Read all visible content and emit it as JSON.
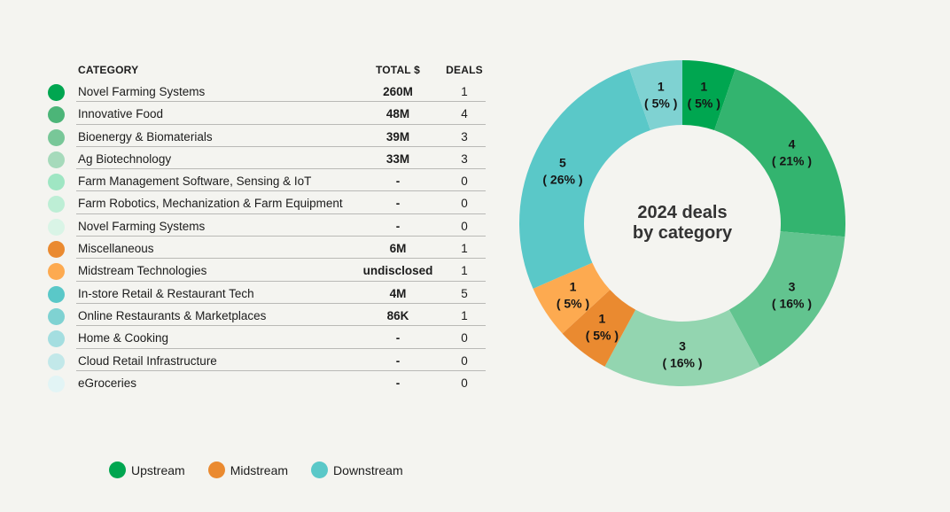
{
  "table": {
    "headers": {
      "category": "CATEGORY",
      "total": "TOTAL $",
      "deals": "DEALS"
    },
    "rows": [
      {
        "category": "Novel Farming Systems",
        "total": "260M",
        "deals": "1",
        "color": "#00a650",
        "group": "Upstream"
      },
      {
        "category": "Innovative Food",
        "total": "48M",
        "deals": "4",
        "color": "#4cb578",
        "group": "Upstream"
      },
      {
        "category": "Bioenergy & Biomaterials",
        "total": "39M",
        "deals": "3",
        "color": "#78c798",
        "group": "Upstream"
      },
      {
        "category": "Ag Biotechnology",
        "total": "33M",
        "deals": "3",
        "color": "#a6dabb",
        "group": "Upstream"
      },
      {
        "category": "Farm Management Software, Sensing & IoT",
        "total": "-",
        "deals": "0",
        "color": "#9fe6c3",
        "group": "Upstream"
      },
      {
        "category": "Farm Robotics, Mechanization & Farm Equipment",
        "total": "-",
        "deals": "0",
        "color": "#bdeed5",
        "group": "Upstream"
      },
      {
        "category": "Novel Farming Systems",
        "total": "-",
        "deals": "0",
        "color": "#d9f4e6",
        "group": "Upstream"
      },
      {
        "category": "Miscellaneous",
        "total": "6M",
        "deals": "1",
        "color": "#ea8a30",
        "group": "Midstream"
      },
      {
        "category": "Midstream Technologies",
        "total": "undisclosed",
        "deals": "1",
        "color": "#fdaa50",
        "group": "Midstream"
      },
      {
        "category": "In-store Retail & Restaurant Tech",
        "total": "4M",
        "deals": "5",
        "color": "#5ac8c8",
        "group": "Downstream"
      },
      {
        "category": "Online Restaurants & Marketplaces",
        "total": "86K",
        "deals": "1",
        "color": "#7fd2d2",
        "group": "Downstream"
      },
      {
        "category": "Home & Cooking",
        "total": "-",
        "deals": "0",
        "color": "#a4dee0",
        "group": "Downstream"
      },
      {
        "category": "Cloud Retail Infrastructure",
        "total": "-",
        "deals": "0",
        "color": "#c2e8e9",
        "group": "Downstream"
      },
      {
        "category": "eGroceries",
        "total": "-",
        "deals": "0",
        "color": "#e2f4f5",
        "group": "Downstream"
      }
    ]
  },
  "legend": [
    {
      "label": "Upstream",
      "color": "#00a650"
    },
    {
      "label": "Midstream",
      "color": "#ea8a30"
    },
    {
      "label": "Downstream",
      "color": "#5ac8c8"
    }
  ],
  "chart_data": {
    "type": "pie",
    "variant": "donut",
    "title": "2024 deals by category",
    "title_lines": [
      "2024 deals",
      "by category"
    ],
    "total": 19,
    "start": "top, clockwise",
    "slices": [
      {
        "category": "Novel Farming Systems",
        "value": 1,
        "percent_label": "5%",
        "color": "#00a650"
      },
      {
        "category": "Innovative Food",
        "value": 4,
        "percent_label": "21%",
        "color": "#33b46f"
      },
      {
        "category": "Bioenergy & Biomaterials",
        "value": 3,
        "percent_label": "16%",
        "color": "#62c48f"
      },
      {
        "category": "Ag Biotechnology",
        "value": 3,
        "percent_label": "16%",
        "color": "#93d5b0"
      },
      {
        "category": "Miscellaneous",
        "value": 1,
        "percent_label": "5%",
        "color": "#ea8a30"
      },
      {
        "category": "Midstream Technologies",
        "value": 1,
        "percent_label": "5%",
        "color": "#fdaa50"
      },
      {
        "category": "In-store Retail & Restaurant Tech",
        "value": 5,
        "percent_label": "26%",
        "color": "#5ac8c8"
      },
      {
        "category": "Online Restaurants & Marketplaces",
        "value": 1,
        "percent_label": "5%",
        "color": "#7fd2d2"
      }
    ],
    "legend": [
      "Upstream",
      "Midstream",
      "Downstream"
    ],
    "legend_placement": "bottom-left"
  }
}
